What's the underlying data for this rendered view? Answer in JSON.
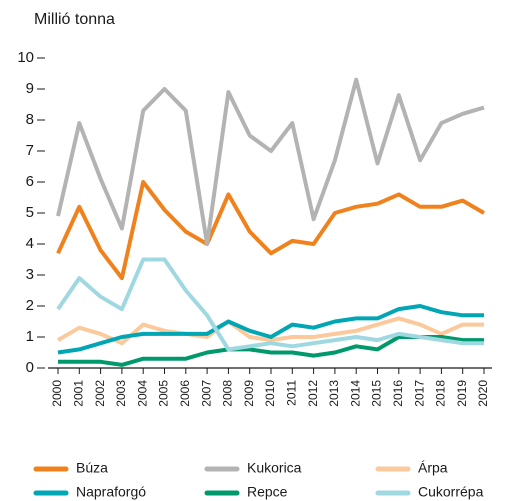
{
  "chart_data": {
    "type": "line",
    "y_axis_label": "Millió tonna",
    "categories": [
      "2000",
      "2001",
      "2002",
      "2003",
      "2004",
      "2005",
      "2006",
      "2007",
      "2008",
      "2009",
      "2010",
      "2011",
      "2012",
      "2013",
      "2014",
      "2015",
      "2016",
      "2017",
      "2018",
      "2019",
      "2020"
    ],
    "ylim": [
      0,
      10
    ],
    "yticks": [
      0,
      1,
      2,
      3,
      4,
      5,
      6,
      7,
      8,
      9,
      10
    ],
    "legend": "bottom",
    "series": [
      {
        "name": "Búza",
        "color": "#f0821e",
        "values": [
          3.7,
          5.2,
          3.8,
          2.9,
          6.0,
          5.1,
          4.4,
          4.0,
          5.6,
          4.4,
          3.7,
          4.1,
          4.0,
          5.0,
          5.2,
          5.3,
          5.6,
          5.2,
          5.2,
          5.4,
          5.0
        ]
      },
      {
        "name": "Kukorica",
        "color": "#b3b3b3",
        "values": [
          4.9,
          7.9,
          6.1,
          4.5,
          8.3,
          9.0,
          8.3,
          4.0,
          8.9,
          7.5,
          7.0,
          7.9,
          4.8,
          6.7,
          9.3,
          6.6,
          8.8,
          6.7,
          7.9,
          8.2,
          8.4
        ]
      },
      {
        "name": "Árpa",
        "color": "#fbc99b",
        "values": [
          0.9,
          1.3,
          1.1,
          0.8,
          1.4,
          1.2,
          1.1,
          1.0,
          1.5,
          1.0,
          0.9,
          1.0,
          1.0,
          1.1,
          1.2,
          1.4,
          1.6,
          1.4,
          1.1,
          1.4,
          1.4
        ]
      },
      {
        "name": "Napraforgó",
        "color": "#00a6b4",
        "values": [
          0.5,
          0.6,
          0.8,
          1.0,
          1.1,
          1.1,
          1.1,
          1.1,
          1.5,
          1.2,
          1.0,
          1.4,
          1.3,
          1.5,
          1.6,
          1.6,
          1.9,
          2.0,
          1.8,
          1.7,
          1.7
        ]
      },
      {
        "name": "Repce",
        "color": "#00996b",
        "values": [
          0.2,
          0.2,
          0.2,
          0.1,
          0.3,
          0.3,
          0.3,
          0.5,
          0.6,
          0.6,
          0.5,
          0.5,
          0.4,
          0.5,
          0.7,
          0.6,
          1.0,
          1.0,
          1.0,
          0.9,
          0.9
        ]
      },
      {
        "name": "Cukorrépa",
        "color": "#9fd8e0",
        "values": [
          1.9,
          2.9,
          2.3,
          1.9,
          3.5,
          3.5,
          2.5,
          1.7,
          0.6,
          0.7,
          0.8,
          0.7,
          0.8,
          0.9,
          1.0,
          0.9,
          1.1,
          1.0,
          0.9,
          0.8,
          0.8
        ]
      }
    ]
  }
}
